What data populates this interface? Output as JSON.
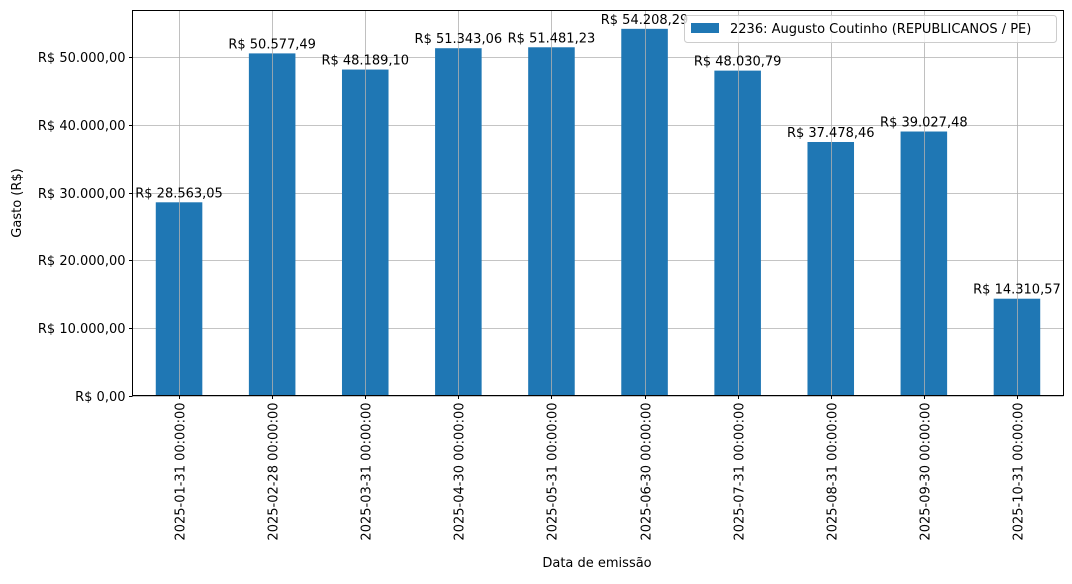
{
  "chart_data": {
    "type": "bar",
    "title": "",
    "xlabel": "Data de emissão",
    "ylabel": "Gasto (R$)",
    "ylim": [
      0,
      56919
    ],
    "grid": true,
    "legend_position": "top-right",
    "bar_color": "#1f77b4",
    "categories": [
      "2025-01-31 00:00:00",
      "2025-02-28 00:00:00",
      "2025-03-31 00:00:00",
      "2025-04-30 00:00:00",
      "2025-05-31 00:00:00",
      "2025-06-30 00:00:00",
      "2025-07-31 00:00:00",
      "2025-08-31 00:00:00",
      "2025-09-30 00:00:00",
      "2025-10-31 00:00:00"
    ],
    "series": [
      {
        "name": "2236: Augusto Coutinho (REPUBLICANOS / PE)",
        "values": [
          28563.05,
          50577.49,
          48189.1,
          51343.06,
          51481.23,
          54208.29,
          48030.79,
          37478.46,
          39027.48,
          14310.57
        ],
        "data_labels": [
          "R$ 28.563,05",
          "R$ 50.577,49",
          "R$ 48.189,10",
          "R$ 51.343,06",
          "R$ 51.481,23",
          "R$ 54.208,29",
          "R$ 48.030,79",
          "R$ 37.478,46",
          "R$ 39.027,48",
          "R$ 14.310,57"
        ]
      }
    ],
    "yticks": [
      0,
      10000,
      20000,
      30000,
      40000,
      50000
    ],
    "ytick_labels": [
      "R$ 0,00",
      "R$ 10.000,00",
      "R$ 20.000,00",
      "R$ 30.000,00",
      "R$ 40.000,00",
      "R$ 50.000,00"
    ]
  }
}
